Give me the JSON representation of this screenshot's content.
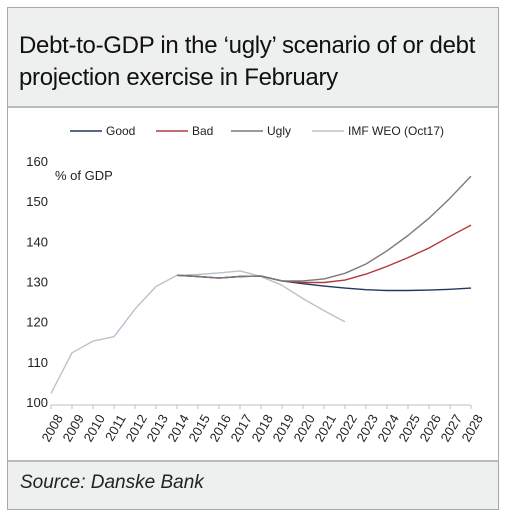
{
  "title": "Debt-to-GDP in the ‘ugly’ scenario of or debt projection exercise in February",
  "source": "Source: Danske Bank",
  "chart_data": {
    "type": "line",
    "ylabel": "% of GDP",
    "ylim": [
      100,
      160
    ],
    "yticks": [
      100,
      110,
      120,
      130,
      140,
      150,
      160
    ],
    "categories": [
      "2008",
      "2009",
      "2010",
      "2011",
      "2012",
      "2013",
      "2014",
      "2015",
      "2016",
      "2017",
      "2018",
      "2019",
      "2020",
      "2021",
      "2022",
      "2023",
      "2024",
      "2025",
      "2026",
      "2027",
      "2028"
    ],
    "grid": false,
    "legend_position": "top",
    "series": [
      {
        "name": "Good",
        "color": "#1f3a5f",
        "values": [
          null,
          null,
          null,
          null,
          null,
          null,
          131.8,
          131.5,
          131.1,
          131.5,
          131.6,
          130.4,
          129.7,
          129.1,
          128.6,
          128.2,
          128.0,
          128.0,
          128.1,
          128.3,
          128.6
        ]
      },
      {
        "name": "Bad",
        "color": "#b03a3a",
        "values": [
          null,
          null,
          null,
          null,
          null,
          null,
          131.8,
          131.5,
          131.1,
          131.5,
          131.6,
          130.4,
          130.0,
          130.0,
          130.6,
          132.1,
          134.0,
          136.2,
          138.6,
          141.5,
          144.3
        ]
      },
      {
        "name": "Ugly",
        "color": "#7a7a7a",
        "values": [
          null,
          null,
          null,
          null,
          null,
          null,
          131.8,
          131.5,
          131.1,
          131.5,
          131.6,
          130.4,
          130.4,
          130.9,
          132.3,
          134.6,
          137.9,
          141.7,
          146.0,
          151.0,
          156.5
        ]
      },
      {
        "name": "IMF WEO (Oct17)",
        "color": "#b8c2cc",
        "values": [
          102.4,
          112.5,
          115.4,
          116.5,
          123.4,
          129.0,
          131.8,
          132.0,
          132.4,
          132.9,
          131.5,
          129.3,
          126.0,
          123.0,
          120.2,
          null,
          null,
          null,
          null,
          null,
          null
        ]
      }
    ]
  }
}
